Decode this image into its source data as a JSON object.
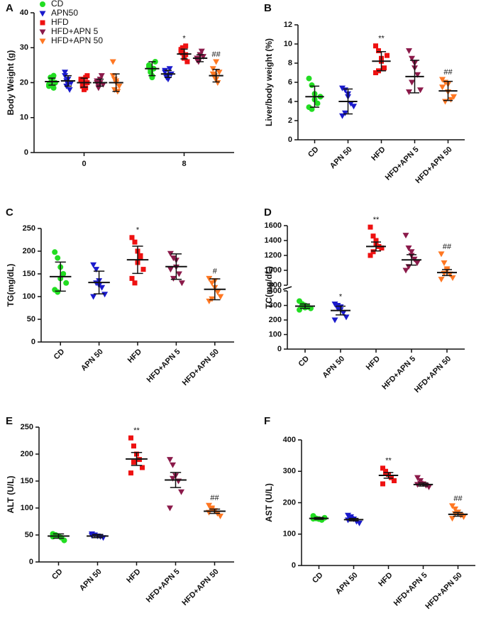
{
  "chart_data": [
    {
      "type": "grouped-dot",
      "panel": "A",
      "ylabel": "Body Weight (g)",
      "categories": [
        "0",
        "8"
      ],
      "ylim": [
        0,
        40
      ],
      "yticks": [
        0,
        10,
        20,
        30,
        40
      ],
      "legend": "upper left",
      "series": [
        {
          "name": "CD",
          "color": "#22dd22",
          "marker": "circle",
          "points": [
            [
              19,
              20,
              21,
              22,
              20,
              19.5,
              21.5,
              20.5,
              18.5,
              20
            ],
            [
              25,
              23,
              22,
              24,
              26,
              24.5,
              23.5,
              21.5
            ]
          ],
          "means": [
            20.3,
            24
          ],
          "errors": [
            1,
            2
          ],
          "annotations": [
            null,
            null
          ]
        },
        {
          "name": "APN50",
          "color": "#1a1acc",
          "marker": "triangle-down",
          "points": [
            [
              22,
              19,
              21,
              18,
              20,
              23,
              20.5,
              19.5
            ],
            [
              23,
              22,
              21,
              24,
              22.5,
              23.5,
              21.5,
              22
            ]
          ],
          "means": [
            20.5,
            22.5
          ],
          "errors": [
            1.5,
            1
          ],
          "annotations": [
            null,
            null
          ]
        },
        {
          "name": "HFD",
          "color": "#ee1111",
          "marker": "square",
          "points": [
            [
              21,
              19,
              20,
              18.5,
              22,
              20.5,
              19.5,
              18,
              21.5,
              20
            ],
            [
              29,
              30,
              27,
              28,
              26,
              29.5,
              28.5,
              27.5,
              30.5
            ]
          ],
          "means": [
            20,
            28.2
          ],
          "errors": [
            1.3,
            1.4
          ],
          "annotations": [
            null,
            "*"
          ]
        },
        {
          "name": "HFD+APN 5",
          "color": "#8b1a4a",
          "marker": "triangle-down",
          "points": [
            [
              20,
              19,
              21,
              22,
              19.5,
              20.5,
              18.5,
              20
            ],
            [
              27,
              26,
              28,
              29,
              27.5,
              26.5,
              27,
              28
            ]
          ],
          "means": [
            20,
            27
          ],
          "errors": [
            1,
            1
          ],
          "annotations": [
            null,
            null
          ]
        },
        {
          "name": "HFD+APN 50",
          "color": "#ff7722",
          "marker": "triangle-down",
          "points": [
            [
              26,
              21,
              20,
              17.5,
              19,
              22,
              18,
              20.5
            ],
            [
              24,
              22,
              21,
              20,
              23,
              22.5,
              21.5,
              26
            ]
          ],
          "means": [
            20,
            22
          ],
          "errors": [
            2.5,
            1.8
          ],
          "annotations": [
            null,
            "##"
          ]
        }
      ]
    },
    {
      "type": "dot",
      "panel": "B",
      "ylabel": "Liver/body weight (%)",
      "categories": [
        "CD",
        "APN 50",
        "HFD",
        "HFD+APN 5",
        "HFD+APN 50"
      ],
      "colors": [
        "#22dd22",
        "#1a1acc",
        "#ee1111",
        "#8b1a4a",
        "#ff7722"
      ],
      "markers": [
        "circle",
        "triangle-down",
        "square",
        "triangle-down",
        "triangle-down"
      ],
      "ylim": [
        0,
        12
      ],
      "yticks": [
        0,
        2,
        4,
        6,
        8,
        10,
        12
      ],
      "points": [
        [
          6.4,
          5.7,
          4.8,
          3.8,
          4.5,
          3.4,
          3.2,
          4.2
        ],
        [
          5.4,
          5.2,
          4.5,
          3.8,
          3.5,
          2.5,
          2.8,
          4.8
        ],
        [
          9.8,
          9.3,
          8.2,
          7.5,
          8.8,
          7,
          7.2,
          8.5
        ],
        [
          9.3,
          8.5,
          7.5,
          6.8,
          5.2,
          5,
          6,
          8
        ],
        [
          6.3,
          6,
          5,
          4.2,
          4.5,
          5.5,
          4,
          5.8
        ]
      ],
      "means": [
        4.5,
        4,
        8.2,
        6.6,
        5.1
      ],
      "errors": [
        1.1,
        1.3,
        1,
        1.7,
        1
      ],
      "annotations": [
        null,
        null,
        "**",
        null,
        "##"
      ]
    },
    {
      "type": "dot",
      "panel": "C",
      "ylabel": "TG(mg/dL)",
      "categories": [
        "CD",
        "APN 50",
        "HFD",
        "HFD+APN 5",
        "HFD+APN 50"
      ],
      "colors": [
        "#22dd22",
        "#1a1acc",
        "#ee1111",
        "#8b1a4a",
        "#ff7722"
      ],
      "markers": [
        "circle",
        "triangle-down",
        "square",
        "triangle-down",
        "triangle-down"
      ],
      "ylim": [
        0,
        250
      ],
      "yticks": [
        0,
        50,
        100,
        150,
        200,
        250
      ],
      "points": [
        [
          198,
          185,
          165,
          150,
          130,
          115,
          110,
          140
        ],
        [
          170,
          160,
          135,
          120,
          105,
          100,
          130,
          125
        ],
        [
          230,
          220,
          200,
          185,
          160,
          140,
          130,
          175,
          190
        ],
        [
          195,
          185,
          165,
          150,
          130,
          160,
          140,
          180
        ],
        [
          140,
          130,
          120,
          110,
          100,
          90,
          95,
          135
        ]
      ],
      "means": [
        144,
        131,
        181,
        166,
        116
      ],
      "errors": [
        32,
        25,
        30,
        28,
        23
      ],
      "annotations": [
        null,
        null,
        "*",
        null,
        "#"
      ]
    },
    {
      "type": "dot",
      "panel": "D",
      "ylabel": "TC(mg/dL)",
      "categories": [
        "CD",
        "APN 50",
        "HFD",
        "HFD+APN 5",
        "HFD+APN 50"
      ],
      "colors": [
        "#22dd22",
        "#1a1acc",
        "#ee1111",
        "#8b1a4a",
        "#ff7722"
      ],
      "markers": [
        "circle",
        "triangle-down",
        "square",
        "triangle-down",
        "triangle-down"
      ],
      "segments": [
        {
          "ylim": [
            0,
            400
          ],
          "yticks": [
            0,
            100,
            200,
            300,
            400
          ]
        },
        {
          "ylim": [
            800,
            1600
          ],
          "yticks": [
            800,
            1000,
            1200,
            1400,
            1600
          ]
        }
      ],
      "points": [
        [
          330,
          310,
          300,
          290,
          280,
          270,
          300,
          285
        ],
        [
          310,
          300,
          270,
          250,
          220,
          200,
          280,
          290
        ],
        [
          1580,
          1460,
          1400,
          1320,
          1300,
          1200,
          1250,
          1350
        ],
        [
          1470,
          1300,
          1250,
          1150,
          1100,
          1000,
          1050,
          1200
        ],
        [
          1220,
          1100,
          1000,
          950,
          900,
          880,
          960,
          1020
        ]
      ],
      "means": [
        295,
        265,
        1320,
        1140,
        970
      ],
      "errors": [
        15,
        30,
        60,
        70,
        40
      ],
      "annotations": [
        null,
        "*",
        "**",
        null,
        "##"
      ]
    },
    {
      "type": "dot",
      "panel": "E",
      "ylabel": "ALT (U/L)",
      "categories": [
        "CD",
        "APN 50",
        "HFD",
        "HFD+APN 5",
        "HFD+APN 50"
      ],
      "colors": [
        "#22dd22",
        "#1a1acc",
        "#ee1111",
        "#8b1a4a",
        "#ff7722"
      ],
      "markers": [
        "circle",
        "triangle-down",
        "square",
        "triangle-down",
        "triangle-down"
      ],
      "ylim": [
        0,
        250
      ],
      "yticks": [
        0,
        50,
        100,
        150,
        200,
        250
      ],
      "points": [
        [
          52,
          50,
          48,
          45,
          40,
          47
        ],
        [
          52,
          50,
          48,
          47,
          45,
          49
        ],
        [
          230,
          215,
          200,
          190,
          175,
          165,
          185
        ],
        [
          190,
          180,
          160,
          150,
          130,
          100,
          155
        ],
        [
          105,
          100,
          95,
          90,
          85,
          92,
          98
        ]
      ],
      "means": [
        48,
        48,
        191,
        152,
        94
      ],
      "errors": [
        4,
        3,
        12,
        14,
        4
      ],
      "annotations": [
        null,
        null,
        "**",
        null,
        "##"
      ]
    },
    {
      "type": "dot",
      "panel": "F",
      "ylabel": "AST (U/L)",
      "categories": [
        "CD",
        "APN 50",
        "HFD",
        "HFD+APN 5",
        "HFD+APN 50"
      ],
      "colors": [
        "#22dd22",
        "#1a1acc",
        "#ee1111",
        "#8b1a4a",
        "#ff7722"
      ],
      "markers": [
        "circle",
        "triangle-down",
        "square",
        "triangle-down",
        "triangle-down"
      ],
      "ylim": [
        0,
        400
      ],
      "yticks": [
        0,
        100,
        200,
        300,
        400
      ],
      "points": [
        [
          158,
          150,
          148,
          145,
          152,
          149
        ],
        [
          160,
          155,
          148,
          140,
          135,
          145,
          150
        ],
        [
          310,
          300,
          290,
          280,
          270,
          260,
          295
        ],
        [
          280,
          270,
          260,
          255,
          250,
          258,
          262
        ],
        [
          190,
          180,
          170,
          160,
          155,
          150,
          165
        ]
      ],
      "means": [
        150,
        146,
        287,
        258,
        163
      ],
      "errors": [
        3,
        4,
        9,
        5,
        6
      ],
      "annotations": [
        null,
        null,
        "**",
        null,
        "##"
      ]
    }
  ]
}
